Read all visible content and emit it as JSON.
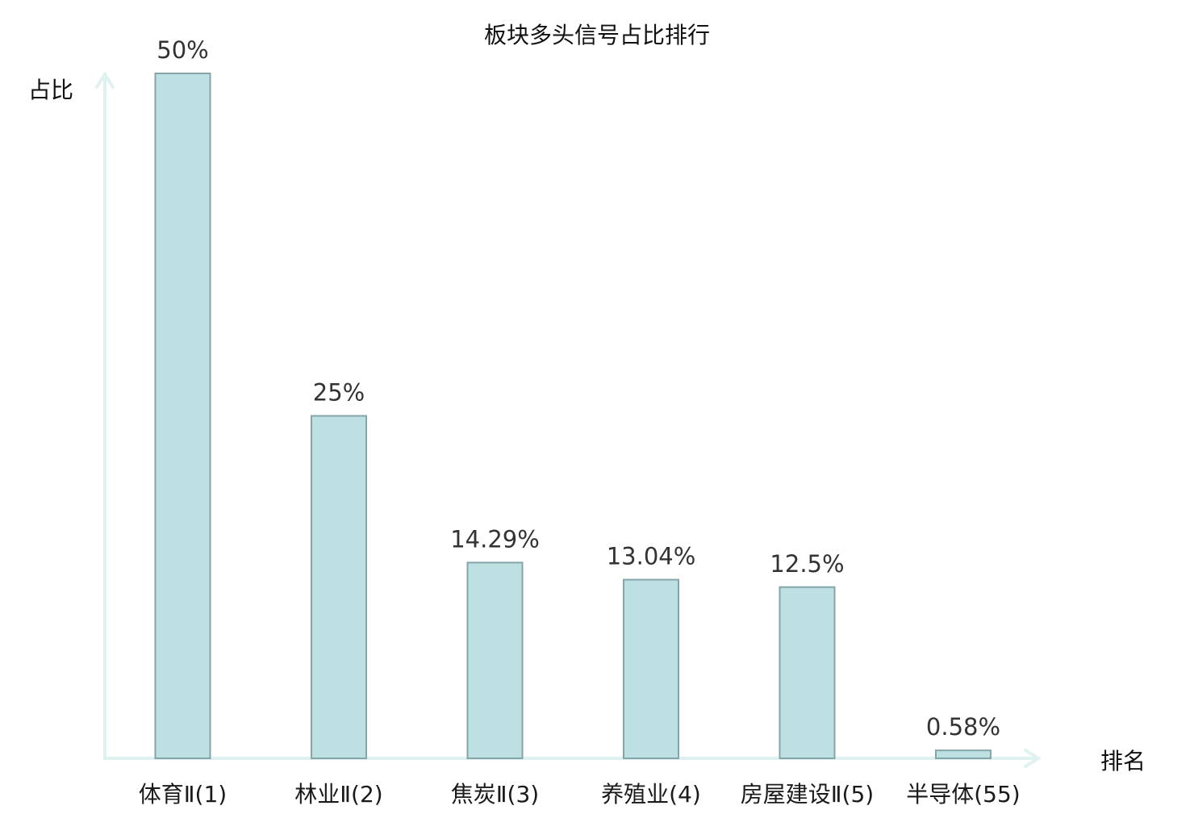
{
  "chart_data": {
    "type": "bar",
    "title": "板块多头信号占比排行",
    "ylabel": "占比",
    "xlabel": "排名",
    "categories": [
      "体育Ⅱ(1)",
      "林业Ⅱ(2)",
      "焦炭Ⅱ(3)",
      "养殖业(4)",
      "房屋建设Ⅱ(5)",
      "半导体(55)"
    ],
    "values": [
      50,
      25,
      14.29,
      13.04,
      12.5,
      0.58
    ],
    "value_labels": [
      "50%",
      "25%",
      "14.29%",
      "13.04%",
      "12.5%",
      "0.58%"
    ],
    "ylim": [
      0,
      50
    ],
    "grid": false,
    "legend": "none",
    "highlight_index": 5,
    "colors": {
      "bar_fill": "#bde0e3",
      "bar_stroke": "#86a5a8",
      "axis": "#dff2ef",
      "highlight_text": "#e8191c",
      "label_text": "#333333"
    }
  }
}
